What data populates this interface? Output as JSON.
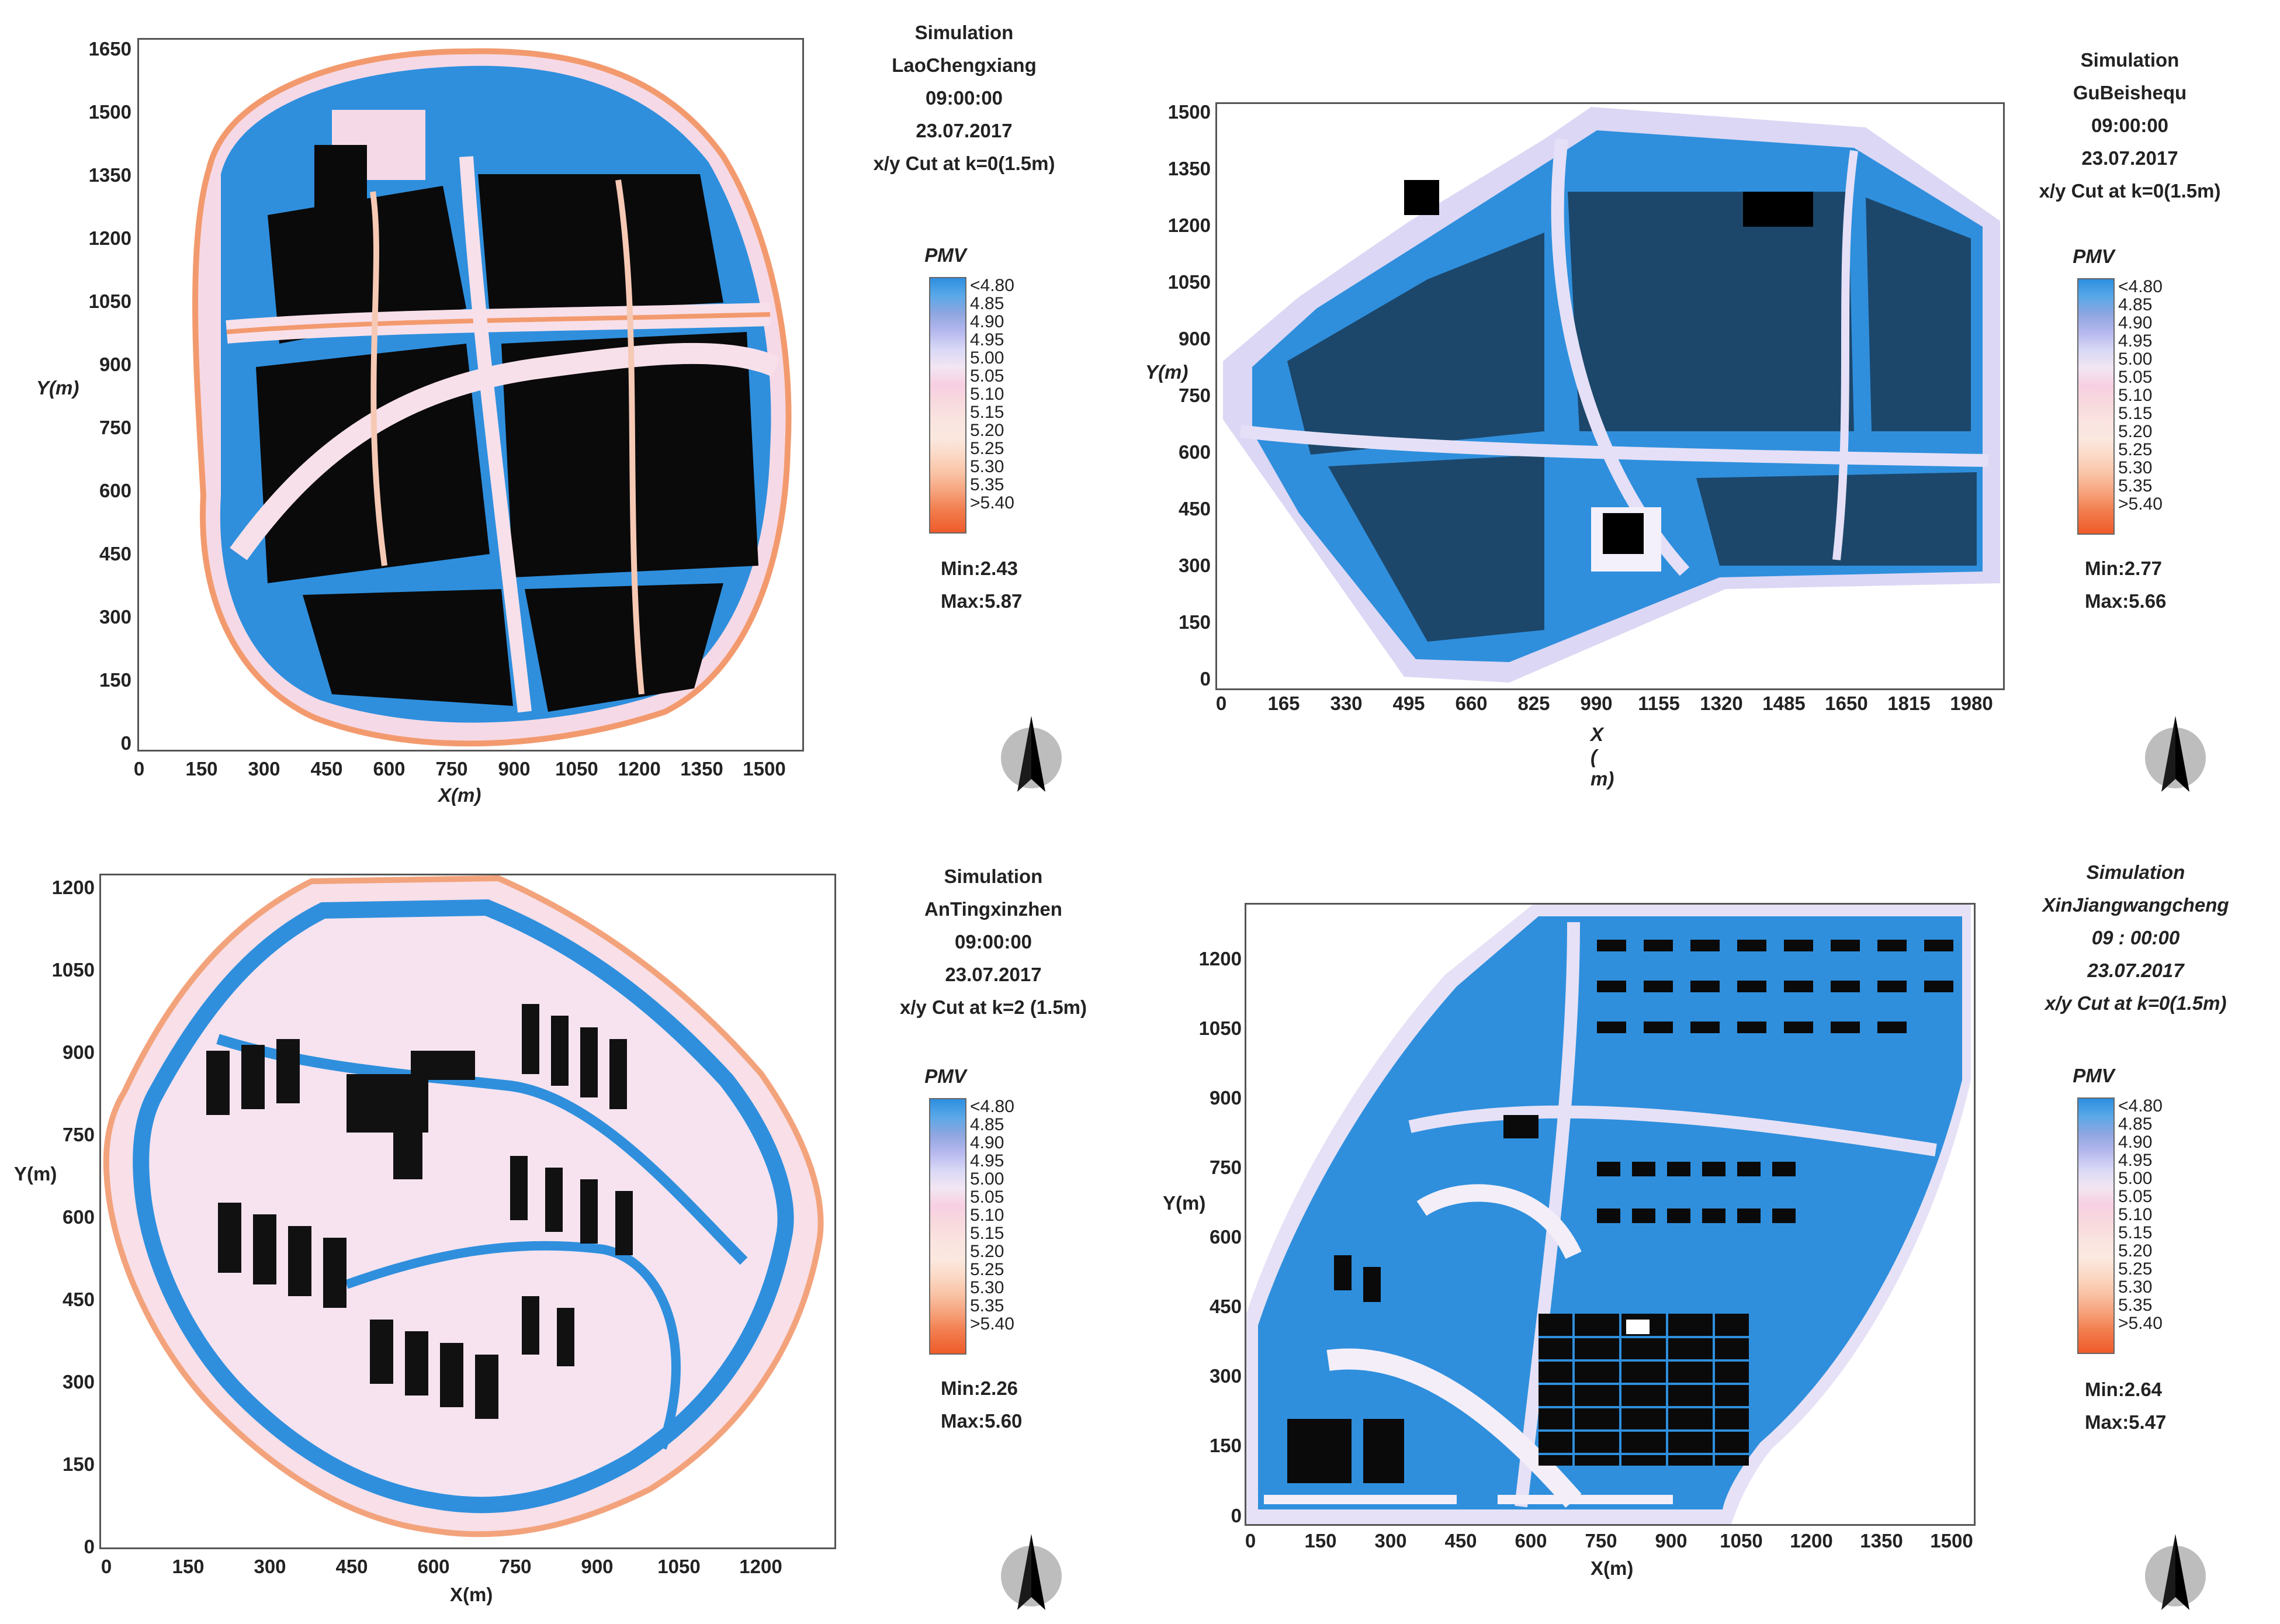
{
  "colors": {
    "building": "#000000",
    "cool": "#2d8fe0",
    "neutral": "#f4dff0",
    "warm": "#ef6a35",
    "frame": "#555555"
  },
  "panels": [
    {
      "id": "laochengxiang",
      "info": [
        "Simulation",
        "LaoChengxiang",
        "09:00:00",
        "23.07.2017",
        "x/y Cut at k=0(1.5m)"
      ],
      "x_axis_label": "X(m)",
      "y_axis_label": "Y(m)",
      "x_ticks": [
        "0",
        "150",
        "300",
        "450",
        "600",
        "750",
        "900",
        "1050",
        "1200",
        "1350",
        "1500"
      ],
      "y_ticks": [
        "0",
        "150",
        "300",
        "450",
        "600",
        "750",
        "900",
        "1050",
        "1200",
        "1350",
        "1500",
        "1650"
      ],
      "legend_title": "PMV",
      "legend_labels": [
        "<4.80",
        "4.85",
        "4.90",
        "4.95",
        "5.00",
        "5.05",
        "5.10",
        "5.15",
        "5.20",
        "5.25",
        "5.30",
        "5.35",
        ">5.40"
      ],
      "min": "Min:2.43",
      "max": "Max:5.87"
    },
    {
      "id": "gubeishequ",
      "info": [
        "Simulation",
        "GuBeishequ",
        "09:00:00",
        "23.07.2017",
        "x/y Cut at k=0(1.5m)"
      ],
      "x_axis_label": "X ( m)",
      "y_axis_label": "Y(m)",
      "x_ticks": [
        "0",
        "165",
        "330",
        "495",
        "660",
        "825",
        "990",
        "1155",
        "1320",
        "1485",
        "1650",
        "1815",
        "1980"
      ],
      "y_ticks": [
        "0",
        "150",
        "300",
        "450",
        "600",
        "750",
        "900",
        "1050",
        "1200",
        "1350",
        "1500"
      ],
      "legend_title": "PMV",
      "legend_labels": [
        "<4.80",
        "4.85",
        "4.90",
        "4.95",
        "5.00",
        "5.05",
        "5.10",
        "5.15",
        "5.20",
        "5.25",
        "5.30",
        "5.35",
        ">5.40"
      ],
      "min": "Min:2.77",
      "max": "Max:5.66"
    },
    {
      "id": "antingxinzhen",
      "info": [
        "Simulation",
        "AnTingxinzhen",
        "09:00:00",
        "23.07.2017",
        "x/y Cut at k=2 (1.5m)"
      ],
      "x_axis_label": "X(m)",
      "y_axis_label": "Y(m)",
      "x_ticks": [
        "0",
        "150",
        "300",
        "450",
        "600",
        "750",
        "900",
        "1050",
        "1200"
      ],
      "y_ticks": [
        "0",
        "150",
        "300",
        "450",
        "600",
        "750",
        "900",
        "1050",
        "1200"
      ],
      "legend_title": "PMV",
      "legend_labels": [
        "<4.80",
        "4.85",
        "4.90",
        "4.95",
        "5.00",
        "5.05",
        "5.10",
        "5.15",
        "5.20",
        "5.25",
        "5.30",
        "5.35",
        ">5.40"
      ],
      "min": "Min:2.26",
      "max": "Max:5.60"
    },
    {
      "id": "xinjiangwangcheng",
      "info": [
        "Simulation",
        "XinJiangwangcheng",
        "09 : 00:00",
        "23.07.2017",
        "x/y Cut at k=0(1.5m)"
      ],
      "x_axis_label": "X(m)",
      "y_axis_label": "Y(m)",
      "x_ticks": [
        "0",
        "150",
        "300",
        "450",
        "600",
        "750",
        "900",
        "1050",
        "1200",
        "1350",
        "1500"
      ],
      "y_ticks": [
        "0",
        "150",
        "300",
        "450",
        "600",
        "750",
        "900",
        "1050",
        "1200"
      ],
      "legend_title": "PMV",
      "legend_labels": [
        "<4.80",
        "4.85",
        "4.90",
        "4.95",
        "5.00",
        "5.05",
        "5.10",
        "5.15",
        "5.20",
        "5.25",
        "5.30",
        "5.35",
        ">5.40"
      ],
      "min": "Min:2.64",
      "max": "Max:5.47"
    }
  ]
}
